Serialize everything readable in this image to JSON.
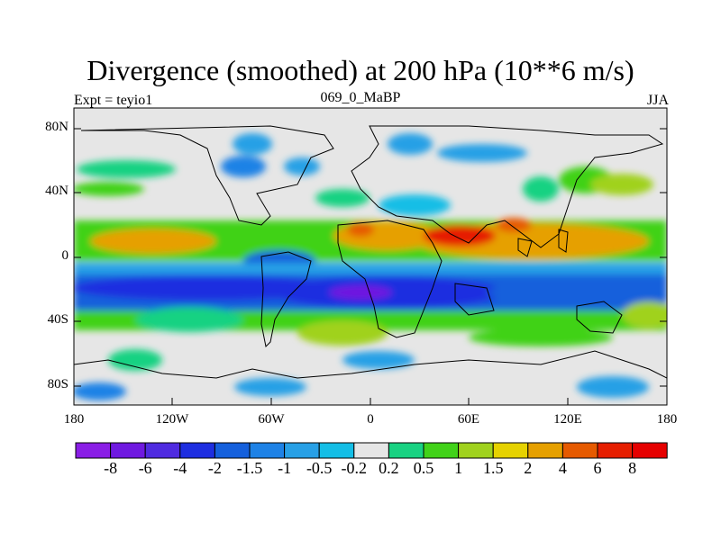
{
  "title": "Divergence (smoothed) at 200 hPa (10**6 m/s)",
  "subtitle_left": "Expt = teyio1",
  "subtitle_center": "069_0_MaBP",
  "subtitle_right": "JJA",
  "y_axis": {
    "ticks": [
      "80N",
      "40N",
      "0",
      "40S",
      "80S"
    ]
  },
  "x_axis": {
    "ticks": [
      "180",
      "120W",
      "60W",
      "0",
      "60E",
      "120E",
      "180"
    ]
  },
  "colorbar": {
    "labels": [
      "-8",
      "-6",
      "-4",
      "-2",
      "-1.5",
      "-1",
      "-0.5",
      "-0.2",
      "0.2",
      "0.5",
      "1",
      "1.5",
      "2",
      "4",
      "6",
      "8"
    ],
    "colors": [
      "#8a1ee6",
      "#6f19e0",
      "#4f2be0",
      "#1e2ee0",
      "#1560dc",
      "#1e82e6",
      "#28a0e6",
      "#14bee6",
      "#e6e6e6",
      "#19d282",
      "#41d219",
      "#a0d21e",
      "#e6d200",
      "#e6a000",
      "#e65a00",
      "#e61e00",
      "#e60000"
    ]
  },
  "map": {
    "background_color": "#e6e6e6",
    "bands": [
      {
        "lat_range": [
          10,
          20
        ],
        "category": "positive",
        "color": "#e6a000"
      },
      {
        "lat_range": [
          -20,
          0
        ],
        "category": "negative",
        "color": "#1560dc"
      },
      {
        "lat_range": [
          -35,
          -20
        ],
        "category": "strong_negative",
        "color": "#1e2ee0"
      }
    ]
  }
}
